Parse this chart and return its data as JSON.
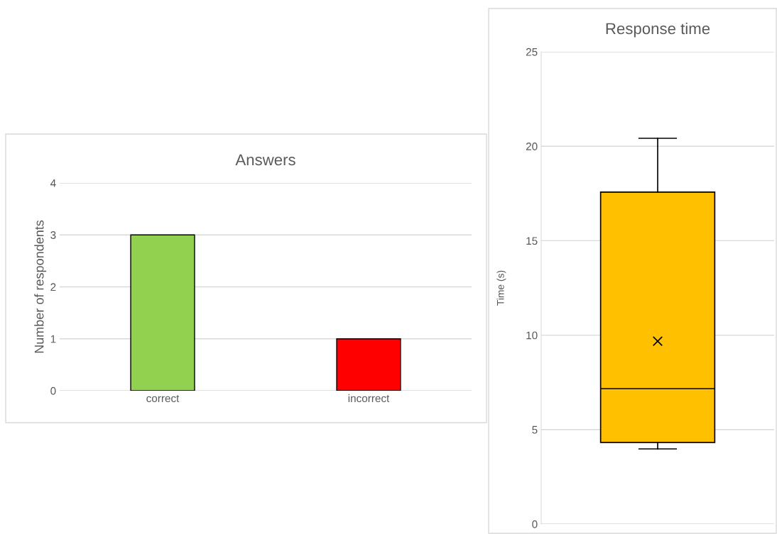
{
  "chart_data": [
    {
      "type": "bar",
      "title": "Answers",
      "ylabel": "Number of respondents",
      "categories": [
        "correct",
        "incorrect"
      ],
      "values": [
        3,
        1
      ],
      "colors": [
        "#92d050",
        "#ff0000"
      ],
      "ylim": [
        0,
        4
      ],
      "yticks": [
        0,
        1,
        2,
        3,
        4
      ],
      "grid": "y",
      "legend": false
    },
    {
      "type": "box",
      "title": "Response time",
      "ylabel": "Time (s)",
      "categories": [
        null
      ],
      "boxes": [
        {
          "low": 3.98,
          "q1": 4.32,
          "median": 7.17,
          "q3": 17.57,
          "high": 20.42,
          "mean": 9.68
        }
      ],
      "color": "#ffc000",
      "ylim": [
        0,
        25
      ],
      "yticks": [
        0,
        5,
        10,
        15,
        20,
        25
      ],
      "grid": "y",
      "legend": false,
      "tick_labels": "y",
      "marker": "cross"
    }
  ]
}
